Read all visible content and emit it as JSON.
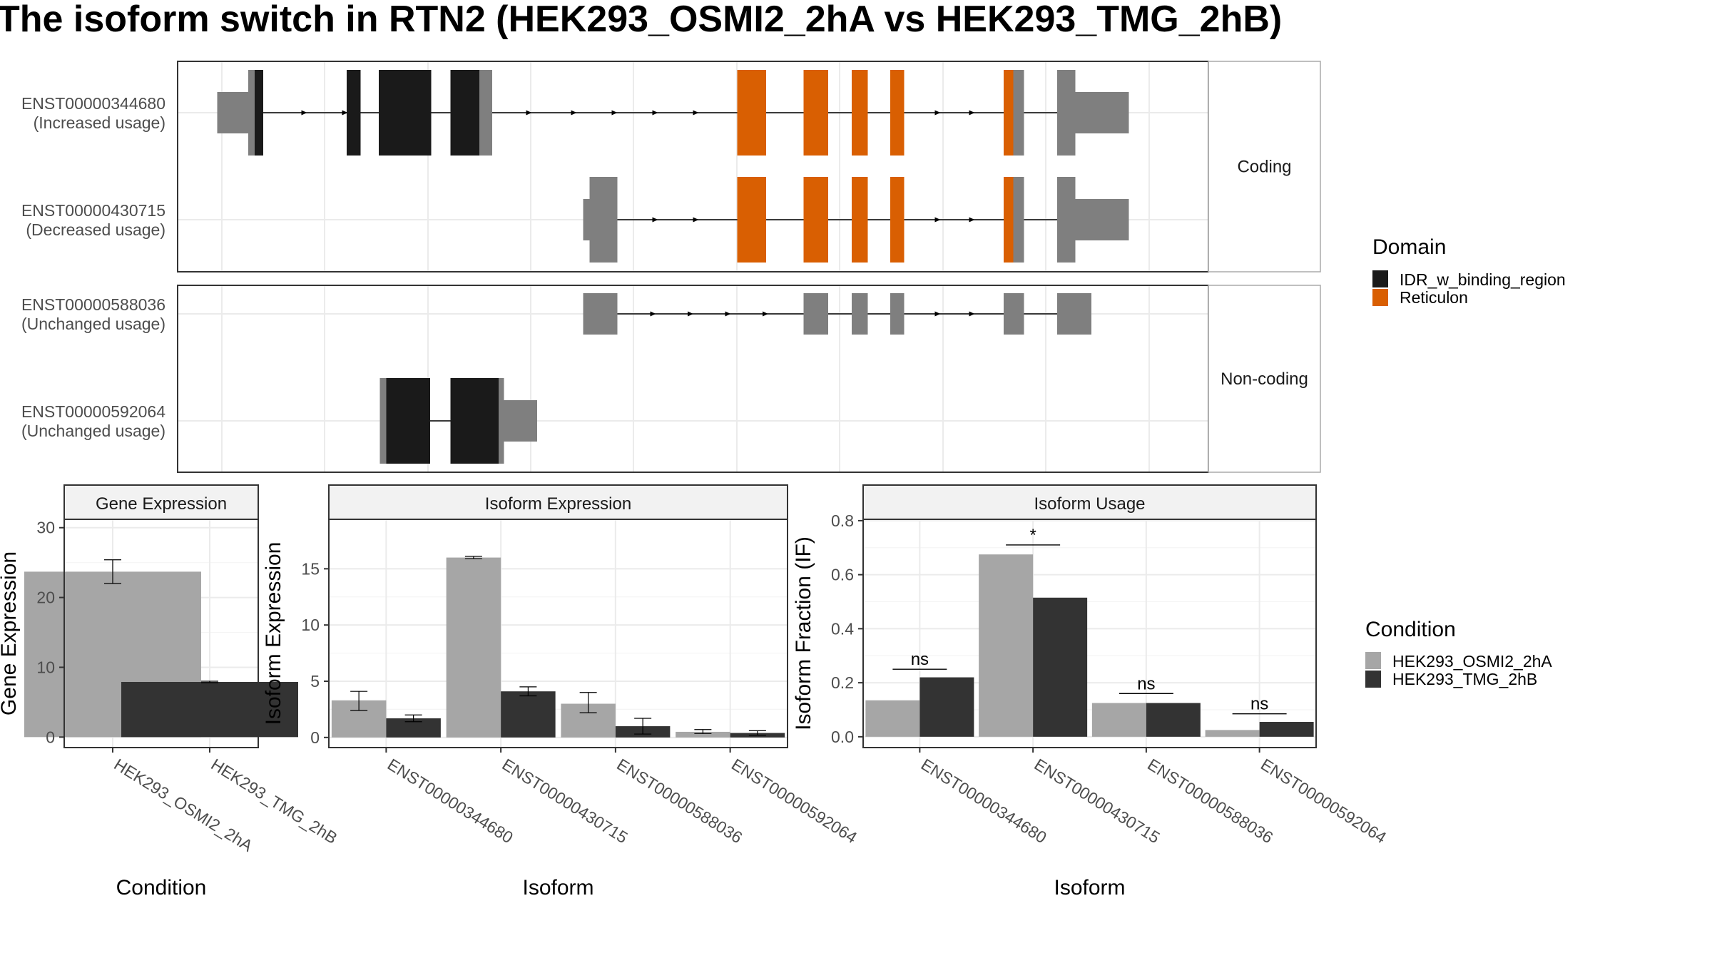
{
  "title": "The isoform switch in RTN2 (HEK293_OSMI2_2hA vs HEK293_TMG_2hB)",
  "colors": {
    "idr": "#1a1a1a",
    "reticulon": "#d95f02",
    "nodomain": "#7f7f7f",
    "cond1": "#a6a6a6",
    "cond2": "#333333",
    "grid": "#ebebeb",
    "strip": "#f2f2f2",
    "axis": "#4d4d4d"
  },
  "structure": {
    "domain_legend": {
      "title": "Domain",
      "items": [
        {
          "label": "IDR_w_binding_region",
          "color_key": "idr"
        },
        {
          "label": "Reticulon",
          "color_key": "reticulon"
        }
      ]
    },
    "panels": [
      {
        "label": "Coding",
        "transcripts": [
          {
            "id": "ENST00000344680",
            "usage": "(Increased usage)",
            "line": [
              238,
              1055
            ],
            "arrows": [
              285,
              323,
              495,
              537,
              575,
              613,
              651,
              877,
              909
            ],
            "blocks": [
              {
                "s": 203,
                "e": 238,
                "h": "utr",
                "c": "nodomain"
              },
              {
                "s": 232,
                "e": 238,
                "h": "cds",
                "c": "nodomain"
              },
              {
                "s": 238,
                "e": 246,
                "h": "cds",
                "c": "idr"
              },
              {
                "s": 324,
                "e": 337,
                "h": "cds",
                "c": "idr"
              },
              {
                "s": 354,
                "e": 403,
                "h": "cds",
                "c": "idr"
              },
              {
                "s": 421,
                "e": 448,
                "h": "cds",
                "c": "idr"
              },
              {
                "s": 448,
                "e": 460,
                "h": "cds",
                "c": "nodomain"
              },
              {
                "s": 689,
                "e": 716,
                "h": "cds",
                "c": "reticulon"
              },
              {
                "s": 751,
                "e": 774,
                "h": "cds",
                "c": "reticulon"
              },
              {
                "s": 796,
                "e": 811,
                "h": "cds",
                "c": "reticulon"
              },
              {
                "s": 832,
                "e": 845,
                "h": "cds",
                "c": "reticulon"
              },
              {
                "s": 938,
                "e": 947,
                "h": "cds",
                "c": "reticulon"
              },
              {
                "s": 947,
                "e": 957,
                "h": "cds",
                "c": "nodomain"
              },
              {
                "s": 988,
                "e": 1005,
                "h": "cds",
                "c": "nodomain"
              },
              {
                "s": 1005,
                "e": 1055,
                "h": "utr",
                "c": "nodomain"
              }
            ]
          },
          {
            "id": "ENST00000430715",
            "usage": "(Decreased usage)",
            "line": [
              545,
              1055
            ],
            "arrows": [
              613,
              651,
              877,
              909
            ],
            "blocks": [
              {
                "s": 545,
                "e": 551,
                "h": "utr",
                "c": "nodomain"
              },
              {
                "s": 551,
                "e": 577,
                "h": "cds",
                "c": "nodomain"
              },
              {
                "s": 689,
                "e": 716,
                "h": "cds",
                "c": "reticulon"
              },
              {
                "s": 751,
                "e": 774,
                "h": "cds",
                "c": "reticulon"
              },
              {
                "s": 796,
                "e": 811,
                "h": "cds",
                "c": "reticulon"
              },
              {
                "s": 832,
                "e": 845,
                "h": "cds",
                "c": "reticulon"
              },
              {
                "s": 938,
                "e": 947,
                "h": "cds",
                "c": "reticulon"
              },
              {
                "s": 947,
                "e": 957,
                "h": "cds",
                "c": "nodomain"
              },
              {
                "s": 988,
                "e": 1005,
                "h": "cds",
                "c": "nodomain"
              },
              {
                "s": 1005,
                "e": 1055,
                "h": "utr",
                "c": "nodomain"
              }
            ]
          }
        ]
      },
      {
        "label": "Non-coding",
        "transcripts": [
          {
            "id": "ENST00000588036",
            "usage": "(Unchanged usage)",
            "line": [
              545,
              1020
            ],
            "arrows": [
              611,
              646,
              681,
              716,
              877,
              909
            ],
            "blocks": [
              {
                "s": 545,
                "e": 577,
                "h": "nc",
                "c": "nodomain"
              },
              {
                "s": 751,
                "e": 774,
                "h": "nc",
                "c": "nodomain"
              },
              {
                "s": 796,
                "e": 811,
                "h": "nc",
                "c": "nodomain"
              },
              {
                "s": 832,
                "e": 845,
                "h": "nc",
                "c": "nodomain"
              },
              {
                "s": 938,
                "e": 957,
                "h": "nc",
                "c": "nodomain"
              },
              {
                "s": 988,
                "e": 1020,
                "h": "nc",
                "c": "nodomain"
              }
            ]
          },
          {
            "id": "ENST00000592064",
            "usage": "(Unchanged usage)",
            "line": [
              355,
              502
            ],
            "arrows": [],
            "blocks": [
              {
                "s": 355,
                "e": 361,
                "h": "cds",
                "c": "nodomain"
              },
              {
                "s": 361,
                "e": 402,
                "h": "cds",
                "c": "idr"
              },
              {
                "s": 421,
                "e": 466,
                "h": "cds",
                "c": "idr"
              },
              {
                "s": 466,
                "e": 471,
                "h": "cds",
                "c": "nodomain"
              },
              {
                "s": 471,
                "e": 502,
                "h": "utr",
                "c": "nodomain"
              }
            ]
          }
        ]
      }
    ]
  },
  "condition_legend": {
    "title": "Condition",
    "items": [
      {
        "label": "HEK293_OSMI2_2hA",
        "color_key": "cond1"
      },
      {
        "label": "HEK293_TMG_2hB",
        "color_key": "cond2"
      }
    ]
  },
  "chart_data": [
    {
      "type": "bar",
      "title": "Gene Expression",
      "xlabel": "Condition",
      "ylabel": "Gene Expression",
      "categories": [
        "HEK293_OSMI2_2hA",
        "HEK293_TMG_2hB"
      ],
      "values": [
        23.7,
        7.9
      ],
      "errors": [
        [
          22.0,
          25.4
        ],
        [
          7.8,
          8.0
        ]
      ],
      "bar_colors": [
        "cond1",
        "cond2"
      ],
      "ylim": [
        -1.5,
        31.2
      ],
      "yticks": [
        0,
        10,
        20,
        30
      ],
      "ytick_labels": [
        "0",
        "10",
        "20",
        "30"
      ]
    },
    {
      "type": "bar",
      "title": "Isoform Expression",
      "xlabel": "Isoform",
      "ylabel": "Isoform Expression",
      "categories": [
        "ENST00000344680",
        "ENST00000430715",
        "ENST00000588036",
        "ENST00000592064"
      ],
      "series": [
        {
          "name": "HEK293_OSMI2_2hA",
          "values": [
            3.3,
            16.0,
            3.0,
            0.5
          ],
          "errors": [
            [
              2.4,
              4.1
            ],
            [
              15.9,
              16.1
            ],
            [
              2.2,
              4.0
            ],
            [
              0.35,
              0.7
            ]
          ]
        },
        {
          "name": "HEK293_TMG_2hB",
          "values": [
            1.7,
            4.1,
            1.0,
            0.4
          ],
          "errors": [
            [
              1.4,
              2.0
            ],
            [
              3.7,
              4.5
            ],
            [
              0.3,
              1.7
            ],
            [
              0.2,
              0.6
            ]
          ]
        }
      ],
      "ylim": [
        -0.9,
        19.4
      ],
      "yticks": [
        0,
        5,
        10,
        15
      ],
      "ytick_labels": [
        "0",
        "5",
        "10",
        "15"
      ]
    },
    {
      "type": "bar",
      "title": "Isoform Usage",
      "xlabel": "Isoform",
      "ylabel": "Isoform Fraction (IF)",
      "categories": [
        "ENST00000344680",
        "ENST00000430715",
        "ENST00000588036",
        "ENST00000592064"
      ],
      "series": [
        {
          "name": "HEK293_OSMI2_2hA",
          "values": [
            0.135,
            0.675,
            0.125,
            0.025
          ]
        },
        {
          "name": "HEK293_TMG_2hB",
          "values": [
            0.22,
            0.515,
            0.125,
            0.055
          ]
        }
      ],
      "significance": [
        {
          "label": "ns",
          "y": 0.25
        },
        {
          "label": "*",
          "y": 0.71
        },
        {
          "label": "ns",
          "y": 0.16
        },
        {
          "label": "ns",
          "y": 0.085
        }
      ],
      "ylim": [
        -0.04,
        0.805
      ],
      "yticks": [
        0,
        0.2,
        0.4,
        0.6,
        0.8
      ],
      "ytick_labels": [
        "0.0",
        "0.2",
        "0.4",
        "0.6",
        "0.8"
      ]
    }
  ]
}
